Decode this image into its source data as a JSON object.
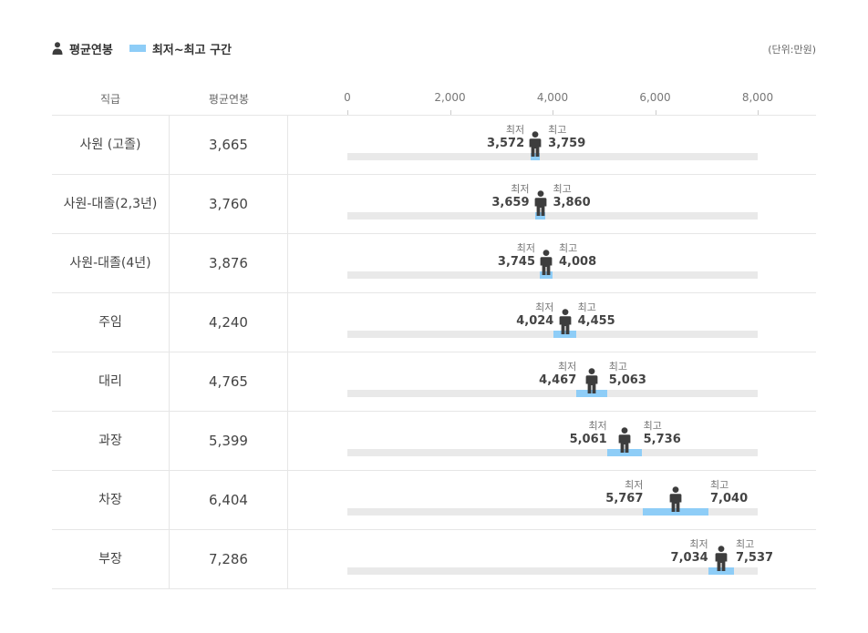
{
  "legend": {
    "avg_label": "평균연봉",
    "range_label": "최저~최고 구간",
    "unit": "(단위:만원)"
  },
  "table": {
    "col_position": "직급",
    "col_avg": "평균연봉"
  },
  "colors": {
    "range": "#8ecdf7",
    "track": "#e9e9e9",
    "person": "#3d3d3d"
  },
  "icons": {
    "average_marker": "person-icon"
  },
  "range_labels": {
    "min": "최저",
    "max": "최고"
  },
  "chart_data": {
    "type": "range-dot",
    "xlim": [
      0,
      8000
    ],
    "x_ticks": [
      {
        "value": 0,
        "label": "0"
      },
      {
        "value": 2000,
        "label": "2,000"
      },
      {
        "value": 4000,
        "label": "4,000"
      },
      {
        "value": 6000,
        "label": "6,000"
      },
      {
        "value": 8000,
        "label": "8,000"
      }
    ],
    "rows": [
      {
        "position": "사원 (고졸)",
        "avg": 3665,
        "avg_label": "3,665",
        "min": 3572,
        "min_label": "3,572",
        "max": 3759,
        "max_label": "3,759"
      },
      {
        "position": "사원-대졸(2,3년)",
        "avg": 3760,
        "avg_label": "3,760",
        "min": 3659,
        "min_label": "3,659",
        "max": 3860,
        "max_label": "3,860"
      },
      {
        "position": "사원-대졸(4년)",
        "avg": 3876,
        "avg_label": "3,876",
        "min": 3745,
        "min_label": "3,745",
        "max": 4008,
        "max_label": "4,008"
      },
      {
        "position": "주임",
        "avg": 4240,
        "avg_label": "4,240",
        "min": 4024,
        "min_label": "4,024",
        "max": 4455,
        "max_label": "4,455"
      },
      {
        "position": "대리",
        "avg": 4765,
        "avg_label": "4,765",
        "min": 4467,
        "min_label": "4,467",
        "max": 5063,
        "max_label": "5,063"
      },
      {
        "position": "과장",
        "avg": 5399,
        "avg_label": "5,399",
        "min": 5061,
        "min_label": "5,061",
        "max": 5736,
        "max_label": "5,736"
      },
      {
        "position": "차장",
        "avg": 6404,
        "avg_label": "6,404",
        "min": 5767,
        "min_label": "5,767",
        "max": 7040,
        "max_label": "7,040"
      },
      {
        "position": "부장",
        "avg": 7286,
        "avg_label": "7,286",
        "min": 7034,
        "min_label": "7,034",
        "max": 7537,
        "max_label": "7,537"
      }
    ]
  }
}
